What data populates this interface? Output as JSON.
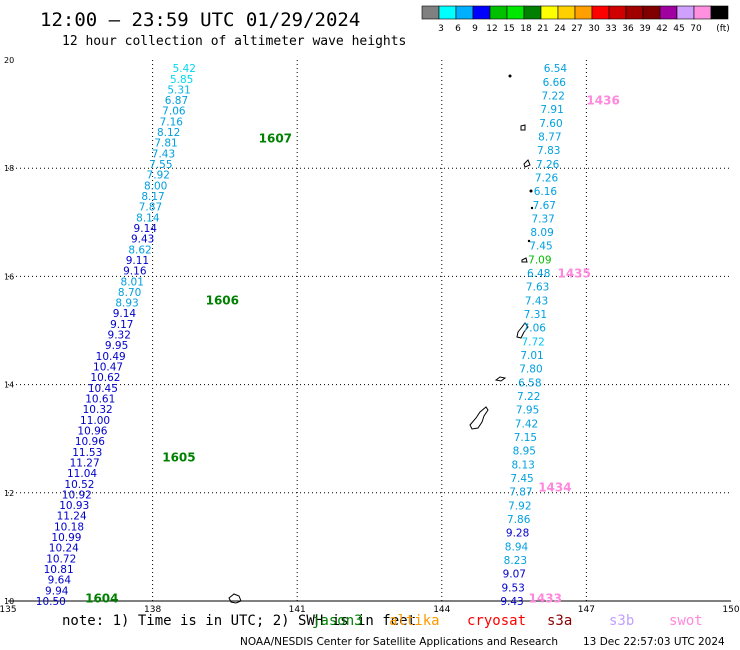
{
  "header": {
    "title": "12:00 – 23:59 UTC 01/29/2024",
    "subtitle": "12 hour collection of altimeter wave heights"
  },
  "colorbar": {
    "unit": "(ft)",
    "labels": [
      "3",
      "6",
      "9",
      "12",
      "15",
      "18",
      "21",
      "24",
      "27",
      "30",
      "33",
      "36",
      "39",
      "42",
      "45",
      "70"
    ],
    "colors": [
      "#808080",
      "#00ffff",
      "#00b0ff",
      "#0000ff",
      "#00c000",
      "#00e800",
      "#008000",
      "#ffff00",
      "#ffd000",
      "#ffa000",
      "#ff0000",
      "#d00000",
      "#a00000",
      "#800000",
      "#a000a0",
      "#d0a0ff",
      "#ff90e0",
      "#000000"
    ]
  },
  "footer": {
    "note": "note: 1) Time is in UTC; 2) SWH is in feet",
    "satellites": [
      {
        "name": "jason3",
        "color": "#008000"
      },
      {
        "name": "altika",
        "color": "#ff9900"
      },
      {
        "name": "cryosat",
        "color": "#ff0000"
      },
      {
        "name": "s3a",
        "color": "#880000"
      },
      {
        "name": "s3b",
        "color": "#c0a0ff"
      },
      {
        "name": "swot",
        "color": "#ff88dd"
      }
    ],
    "credit": "NOAA/NESDIS Center for Satellite Applications and Research",
    "generated": "13 Dec 22:57:03 UTC 2024"
  },
  "chart_data": {
    "type": "scatter",
    "title": "12:00 – 23:59 UTC 01/29/2024",
    "subtitle": "12 hour collection of altimeter wave heights",
    "xlim": [
      135,
      150
    ],
    "ylim": [
      10,
      20
    ],
    "x_ticks": [
      "135",
      "138",
      "141",
      "144",
      "147",
      "150"
    ],
    "y_ticks": [
      "10",
      "12",
      "14",
      "16",
      "18",
      "20"
    ],
    "grid": true,
    "tracks": [
      {
        "side": "west",
        "values": [
          "10.50",
          "9.94",
          "9.64",
          "10.81",
          "10.72",
          "10.24",
          "10.99",
          "10.18",
          "11.24",
          "10.93",
          "10.92",
          "10.52",
          "11.04",
          "11.27",
          "11.53",
          "10.96",
          "10.96",
          "11.00",
          "10.32",
          "10.61",
          "10.45",
          "10.62",
          "10.47",
          "10.49",
          "9.95",
          "9.32",
          "9.17",
          "9.14",
          "8.93",
          "8.70",
          "8.01",
          "9.16",
          "9.11",
          "8.62",
          "9.43",
          "9.14",
          "8.14",
          "7.87",
          "8.17",
          "8.00",
          "7.92",
          "7.55",
          "7.43",
          "7.81",
          "8.12",
          "7.16",
          "7.06",
          "6.87",
          "5.31",
          "5.85",
          "5.42"
        ],
        "colors": [
          "#0000cc",
          "#0000cc",
          "#0000cc",
          "#0000cc",
          "#0000cc",
          "#0000cc",
          "#0000cc",
          "#0000cc",
          "#0000cc",
          "#0000cc",
          "#0000cc",
          "#0000cc",
          "#0000cc",
          "#0000cc",
          "#0000cc",
          "#0000cc",
          "#0000cc",
          "#0000cc",
          "#0000cc",
          "#0000cc",
          "#0000cc",
          "#0000cc",
          "#0000cc",
          "#0000cc",
          "#0000cc",
          "#0000cc",
          "#0000cc",
          "#0000cc",
          "#00a0e0",
          "#00a0e0",
          "#00a0e0",
          "#0000cc",
          "#0000cc",
          "#00a0e0",
          "#0000cc",
          "#0000cc",
          "#00a0e0",
          "#00a0e0",
          "#00a0e0",
          "#00a0e0",
          "#00a0e0",
          "#00a0e0",
          "#00a0e0",
          "#00a0e0",
          "#00a0e0",
          "#00a0e0",
          "#00a0e0",
          "#00a0e0",
          "#00b8f0",
          "#00d8f0",
          "#00d8f0"
        ],
        "lon": [
          136.2,
          138.9
        ],
        "lat": [
          10.0,
          19.85
        ]
      },
      {
        "side": "east",
        "values": [
          "9.43",
          "9.53",
          "9.07",
          "8.23",
          "8.94",
          "9.28",
          "7.86",
          "7.92",
          "7.87",
          "7.45",
          "8.13",
          "8.95",
          "7.15",
          "7.42",
          "7.95",
          "7.22",
          "6.58",
          "7.80",
          "7.01",
          "7.72",
          "7.06",
          "7.31",
          "7.43",
          "7.63",
          "6.48",
          "7.09",
          "7.45",
          "8.09",
          "7.37",
          "7.67",
          "6.16",
          "7.26",
          "7.26",
          "7.83",
          "8.77",
          "7.60",
          "7.91",
          "7.22",
          "6.66",
          "6.54"
        ],
        "colors": [
          "#0000cc",
          "#0000cc",
          "#0000cc",
          "#00a0e0",
          "#00a0e0",
          "#0000cc",
          "#00a0e0",
          "#00a0e0",
          "#00a0e0",
          "#00a0e0",
          "#00a0e0",
          "#00a0e0",
          "#00a0e0",
          "#00a0e0",
          "#00a0e0",
          "#00a0e0",
          "#00a0e0",
          "#00a0e0",
          "#00a0e0",
          "#00c8f0",
          "#00a0e0",
          "#00a0e0",
          "#00a0e0",
          "#00a0e0",
          "#00a0e0",
          "#00c000",
          "#00a0e0",
          "#00a0e0",
          "#00a0e0",
          "#00a0e0",
          "#00a0e0",
          "#00a0e0",
          "#00a0e0",
          "#00a0e0",
          "#00a0e0",
          "#00a0e0",
          "#00a0e0",
          "#00a0e0",
          "#00a0e0",
          "#00a0e0"
        ],
        "lon": [
          145.7,
          146.6
        ],
        "lat": [
          10.0,
          19.85
        ]
      }
    ],
    "time_labels": [
      {
        "text": "1604",
        "lon": 136.6,
        "lat": 10.05,
        "color": "#008000"
      },
      {
        "text": "1605",
        "lon": 138.2,
        "lat": 12.65,
        "color": "#008000"
      },
      {
        "text": "1606",
        "lon": 139.1,
        "lat": 15.55,
        "color": "#008000"
      },
      {
        "text": "1607",
        "lon": 140.2,
        "lat": 18.55,
        "color": "#008000"
      },
      {
        "text": "1433",
        "lon": 145.8,
        "lat": 10.05,
        "color": "#ff88dd"
      },
      {
        "text": "1434",
        "lon": 146.0,
        "lat": 12.1,
        "color": "#ff88dd"
      },
      {
        "text": "1435",
        "lon": 146.4,
        "lat": 16.05,
        "color": "#ff88dd"
      },
      {
        "text": "1436",
        "lon": 147.0,
        "lat": 19.25,
        "color": "#ff88dd"
      }
    ]
  }
}
